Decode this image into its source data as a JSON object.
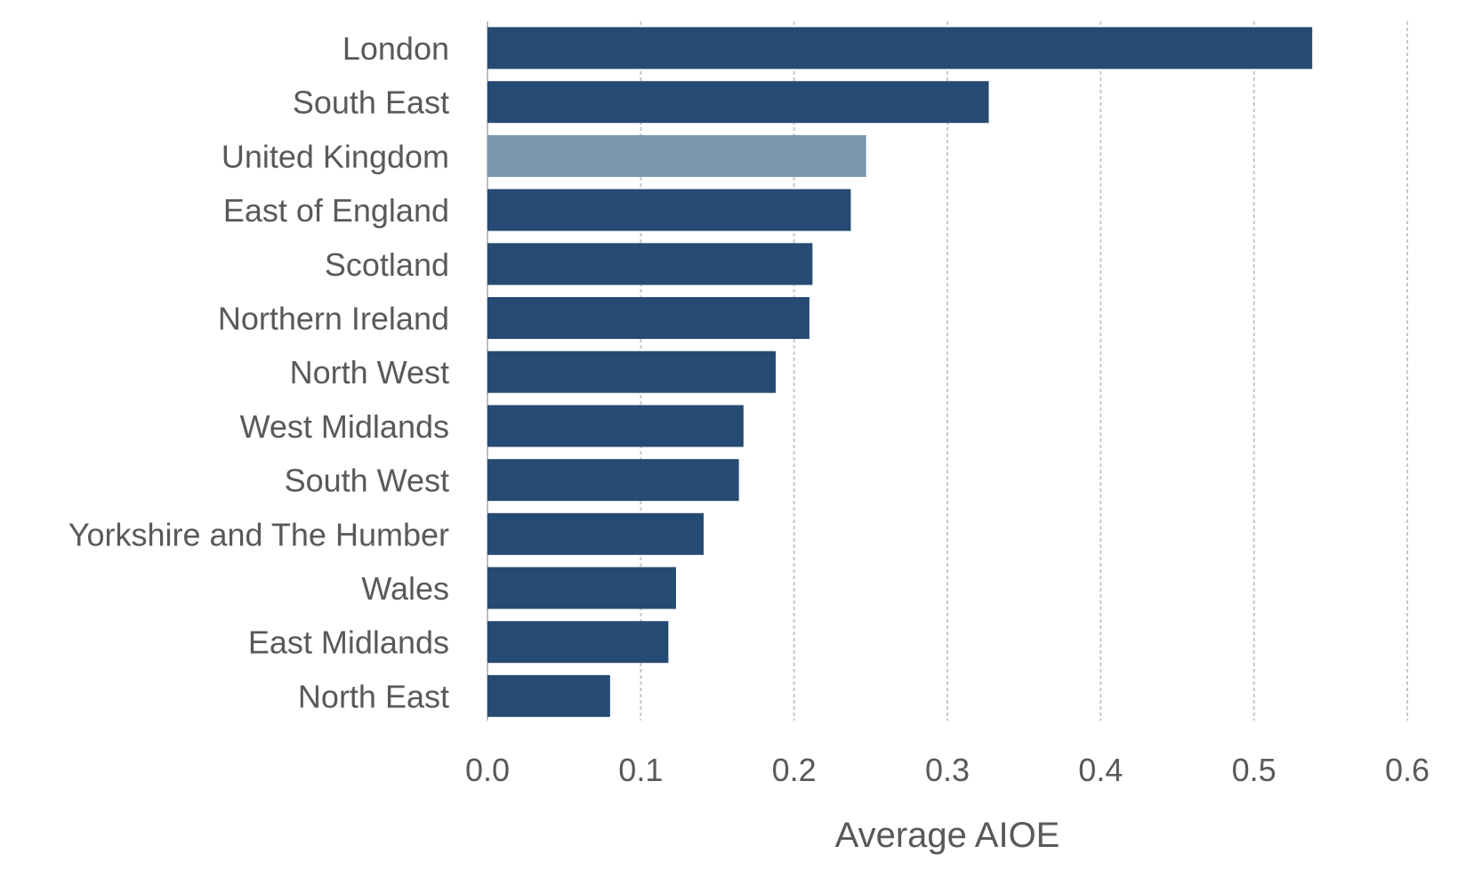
{
  "chart_data": {
    "type": "bar",
    "orientation": "horizontal",
    "categories": [
      "London",
      "South East",
      "United Kingdom",
      "East of England",
      "Scotland",
      "Northern Ireland",
      "North West",
      "West Midlands",
      "South West",
      "Yorkshire and The Humber",
      "Wales",
      "East Midlands",
      "North East"
    ],
    "values": [
      0.538,
      0.327,
      0.247,
      0.237,
      0.212,
      0.21,
      0.188,
      0.167,
      0.164,
      0.141,
      0.123,
      0.118,
      0.08
    ],
    "highlight_category": "United Kingdom",
    "xlabel": "Average AIOE",
    "xlim": [
      0,
      0.6
    ],
    "xticks": [
      "0.0",
      "0.1",
      "0.2",
      "0.3",
      "0.4",
      "0.5",
      "0.6"
    ],
    "grid": "vertical dashed",
    "legend": "none",
    "colors": {
      "bar": "#264b73",
      "highlight": "#7a96ad",
      "text": "#595959",
      "grid": "#c8c8c8"
    }
  }
}
